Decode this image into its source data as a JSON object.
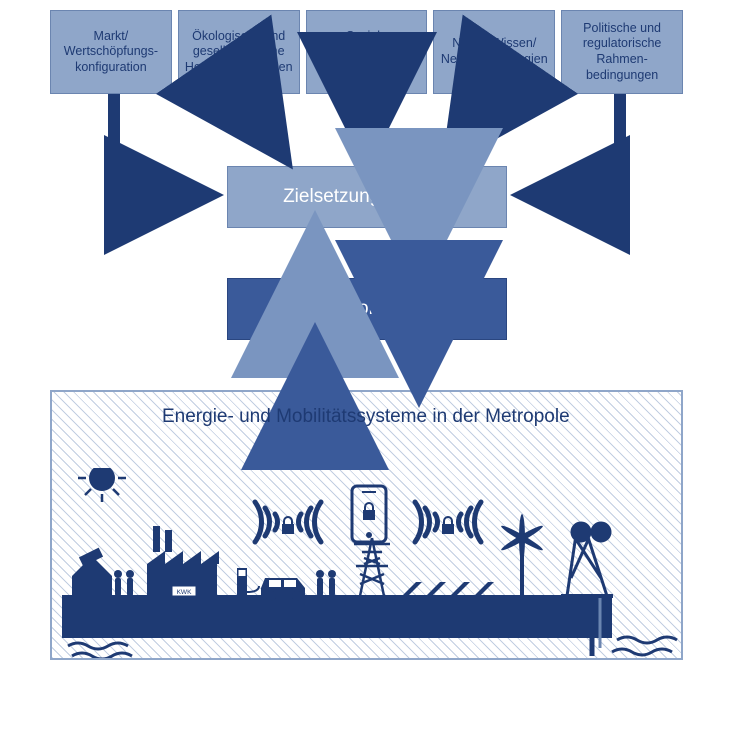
{
  "diagram": {
    "type": "flowchart",
    "colors": {
      "light_box_bg": "#8fa6c9",
      "light_box_text": "#1e3a73",
      "light_box_border": "#6b85b0",
      "dark_box_bg": "#3a5a9a",
      "dark_box_text": "#ffffff",
      "dark_box_border": "#2a4680",
      "ziel_text": "#ffffff",
      "arrow_dark": "#1e3a73",
      "arrow_light": "#7a95c0",
      "arrow_med": "#3a5a9a",
      "panel_border": "#8fa6c9",
      "panel_title_color": "#1e3a73",
      "silhouette_fill": "#1e3a73"
    },
    "fonts": {
      "top_box_size": 12.5,
      "mid_box_size": 19,
      "panel_title_size": 19
    },
    "top_boxes": [
      {
        "label": "Markt/\nWertschöpfungs-\nkonfiguration"
      },
      {
        "label": "Ökologische und\ngesellschaftliche\nHerausforderungen"
      },
      {
        "label": "Soziale Verwendung\nvon Technik"
      },
      {
        "label": "Neues Wissen/\nNeue Technologien"
      },
      {
        "label": "Politische und\nregulatorische\nRahmen-\nbedingungen"
      }
    ],
    "ziel": {
      "label": "Zielsetzungssystem"
    },
    "info": {
      "label": "Informationssystem"
    },
    "panel": {
      "title": "Energie- und Mobilitätssysteme in der Metropole"
    },
    "icons": {
      "kwk_label": "KWK"
    }
  }
}
